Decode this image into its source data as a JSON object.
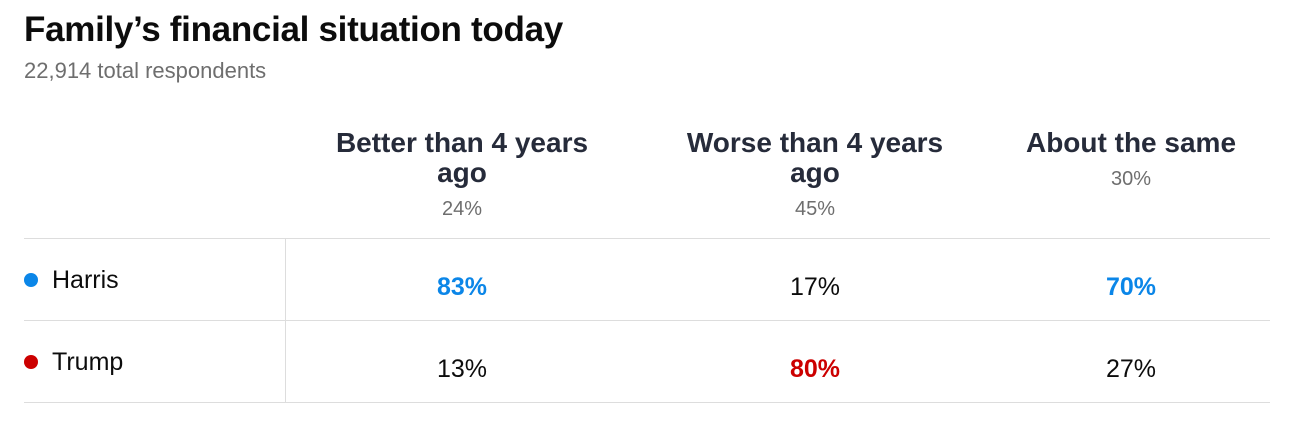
{
  "chart_data": {
    "type": "table",
    "title": "Family’s financial situation today",
    "subtitle": "22,914 total respondents",
    "columns": [
      {
        "label": "Better than 4 years ago",
        "share": "24%"
      },
      {
        "label": "Worse than 4 years ago",
        "share": "45%"
      },
      {
        "label": "About the same",
        "share": "30%"
      }
    ],
    "rows": [
      {
        "name": "Harris",
        "color": "#0b86e8",
        "values": [
          "83%",
          "17%",
          "70%"
        ],
        "winner": [
          true,
          false,
          true
        ]
      },
      {
        "name": "Trump",
        "color": "#cc0000",
        "values": [
          "13%",
          "80%",
          "27%"
        ],
        "winner": [
          false,
          true,
          false
        ]
      }
    ]
  }
}
